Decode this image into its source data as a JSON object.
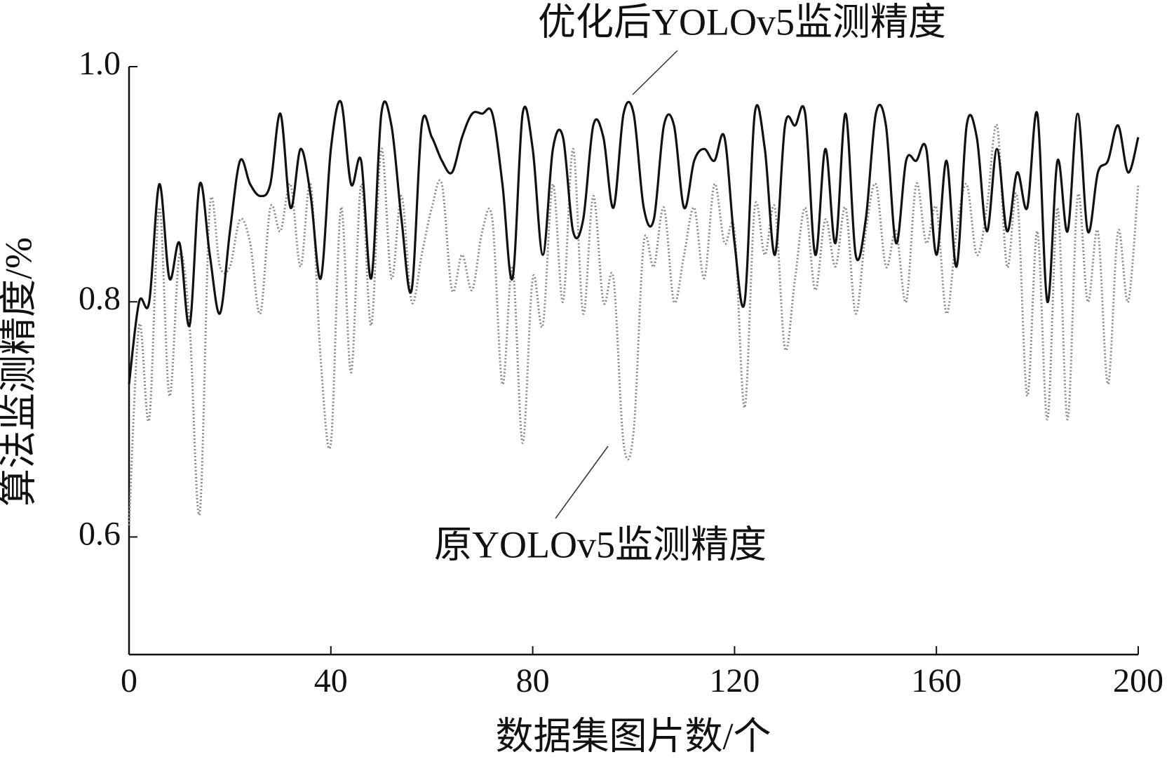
{
  "chart_data": {
    "type": "line",
    "xlabel": "数据集图片数/个",
    "ylabel": "算法监测精度/%",
    "annotations": [
      "优化后YOLOv5监测精度",
      "原YOLOv5监测精度"
    ],
    "xlim": [
      0,
      200
    ],
    "xticks": [
      0,
      40,
      80,
      120,
      160,
      200
    ],
    "ylim": [
      0.5,
      1.0
    ],
    "yticks": [
      0.6,
      0.8,
      {
        "value": 1.0,
        "label": "1.0"
      }
    ],
    "x": [
      0,
      2,
      4,
      6,
      8,
      10,
      12,
      14,
      16,
      18,
      20,
      22,
      24,
      26,
      28,
      30,
      32,
      34,
      36,
      38,
      40,
      42,
      44,
      46,
      48,
      50,
      52,
      54,
      56,
      58,
      60,
      62,
      64,
      66,
      68,
      70,
      72,
      74,
      76,
      78,
      80,
      82,
      84,
      86,
      88,
      90,
      92,
      94,
      96,
      98,
      100,
      102,
      104,
      106,
      108,
      110,
      112,
      114,
      116,
      118,
      120,
      122,
      124,
      126,
      128,
      130,
      132,
      134,
      136,
      138,
      140,
      142,
      144,
      146,
      148,
      150,
      152,
      154,
      156,
      158,
      160,
      162,
      164,
      166,
      168,
      170,
      172,
      174,
      176,
      178,
      180,
      182,
      184,
      186,
      188,
      190,
      192,
      194,
      196,
      198,
      200
    ],
    "series": [
      {
        "name": "优化后YOLOv5监测精度",
        "color": "#111111",
        "style": "solid",
        "values": [
          0.73,
          0.8,
          0.8,
          0.9,
          0.82,
          0.85,
          0.78,
          0.9,
          0.84,
          0.79,
          0.86,
          0.92,
          0.9,
          0.89,
          0.9,
          0.96,
          0.88,
          0.93,
          0.89,
          0.82,
          0.93,
          0.97,
          0.9,
          0.92,
          0.82,
          0.96,
          0.95,
          0.87,
          0.81,
          0.95,
          0.94,
          0.92,
          0.91,
          0.94,
          0.96,
          0.96,
          0.96,
          0.9,
          0.82,
          0.96,
          0.93,
          0.84,
          0.93,
          0.94,
          0.86,
          0.87,
          0.95,
          0.94,
          0.88,
          0.96,
          0.96,
          0.88,
          0.87,
          0.95,
          0.95,
          0.88,
          0.92,
          0.93,
          0.92,
          0.94,
          0.85,
          0.8,
          0.96,
          0.93,
          0.84,
          0.95,
          0.95,
          0.96,
          0.84,
          0.93,
          0.85,
          0.96,
          0.84,
          0.87,
          0.96,
          0.95,
          0.85,
          0.92,
          0.92,
          0.93,
          0.84,
          0.92,
          0.83,
          0.95,
          0.94,
          0.86,
          0.93,
          0.86,
          0.91,
          0.88,
          0.96,
          0.8,
          0.92,
          0.86,
          0.96,
          0.86,
          0.91,
          0.92,
          0.95,
          0.91,
          0.94
        ]
      },
      {
        "name": "原YOLOv5监测精度",
        "color": "#888888",
        "style": "dotted",
        "values": [
          0.61,
          0.78,
          0.7,
          0.88,
          0.72,
          0.84,
          0.78,
          0.62,
          0.88,
          0.83,
          0.83,
          0.87,
          0.85,
          0.79,
          0.88,
          0.86,
          0.9,
          0.83,
          0.9,
          0.75,
          0.68,
          0.88,
          0.74,
          0.9,
          0.78,
          0.93,
          0.82,
          0.89,
          0.8,
          0.84,
          0.88,
          0.9,
          0.81,
          0.84,
          0.81,
          0.86,
          0.87,
          0.73,
          0.83,
          0.68,
          0.82,
          0.78,
          0.9,
          0.8,
          0.93,
          0.79,
          0.89,
          0.8,
          0.82,
          0.68,
          0.69,
          0.85,
          0.83,
          0.88,
          0.8,
          0.84,
          0.88,
          0.82,
          0.9,
          0.85,
          0.86,
          0.71,
          0.88,
          0.84,
          0.88,
          0.76,
          0.82,
          0.88,
          0.81,
          0.87,
          0.83,
          0.88,
          0.79,
          0.86,
          0.9,
          0.83,
          0.86,
          0.8,
          0.9,
          0.85,
          0.88,
          0.79,
          0.86,
          0.9,
          0.84,
          0.88,
          0.95,
          0.83,
          0.89,
          0.72,
          0.86,
          0.7,
          0.88,
          0.7,
          0.89,
          0.8,
          0.86,
          0.73,
          0.86,
          0.8,
          0.9
        ]
      }
    ]
  }
}
